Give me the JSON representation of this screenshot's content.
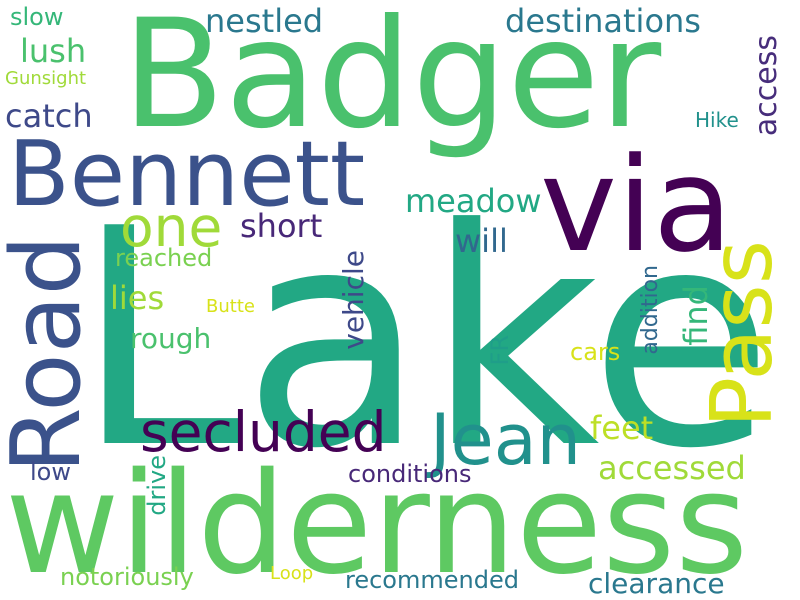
{
  "words": [
    {
      "text": "Lake",
      "color": "#22a884",
      "rotated": false
    },
    {
      "text": "Badger",
      "color": "#4ac16d",
      "rotated": false
    },
    {
      "text": "wilderness",
      "color": "#5ec962",
      "rotated": false
    },
    {
      "text": "via",
      "color": "#440154",
      "rotated": false
    },
    {
      "text": "Bennett",
      "color": "#3b528b",
      "rotated": false
    },
    {
      "text": "Road",
      "color": "#3b528b",
      "rotated": true
    },
    {
      "text": "Pass",
      "color": "#d8e219",
      "rotated": true
    },
    {
      "text": "Jean",
      "color": "#21918c",
      "rotated": false
    },
    {
      "text": "secluded",
      "color": "#440154",
      "rotated": false
    },
    {
      "text": "one",
      "color": "#a0da39",
      "rotated": false
    },
    {
      "text": "nestled",
      "color": "#2a788e",
      "rotated": false
    },
    {
      "text": "destinations",
      "color": "#2a788e",
      "rotated": false
    },
    {
      "text": "lush",
      "color": "#4ac16d",
      "rotated": false
    },
    {
      "text": "catch",
      "color": "#3e4989",
      "rotated": false
    },
    {
      "text": "short",
      "color": "#482878",
      "rotated": false
    },
    {
      "text": "meadow",
      "color": "#22a884",
      "rotated": false
    },
    {
      "text": "will",
      "color": "#31688e",
      "rotated": false
    },
    {
      "text": "reached",
      "color": "#7ad151",
      "rotated": false
    },
    {
      "text": "lies",
      "color": "#a0da39",
      "rotated": false
    },
    {
      "text": "Butte",
      "color": "#d8e219",
      "rotated": false
    },
    {
      "text": "rough",
      "color": "#4ac16d",
      "rotated": false
    },
    {
      "text": "vehicle",
      "color": "#3e4989",
      "rotated": true
    },
    {
      "text": "find",
      "color": "#35b779",
      "rotated": true
    },
    {
      "text": "addition",
      "color": "#31688e",
      "rotated": true
    },
    {
      "text": "FR",
      "color": "#1f9e89",
      "rotated": true
    },
    {
      "text": "cars",
      "color": "#d8e219",
      "rotated": false
    },
    {
      "text": "feet",
      "color": "#bddf26",
      "rotated": false
    },
    {
      "text": "accessed",
      "color": "#a0da39",
      "rotated": false
    },
    {
      "text": "access",
      "color": "#472d7b",
      "rotated": true
    },
    {
      "text": "Hike",
      "color": "#21918c",
      "rotated": false
    },
    {
      "text": "slow",
      "color": "#35b779",
      "rotated": false
    },
    {
      "text": "Gunsight",
      "color": "#a0da39",
      "rotated": false
    },
    {
      "text": "low",
      "color": "#3e4989",
      "rotated": false
    },
    {
      "text": "drive",
      "color": "#22a884",
      "rotated": true
    },
    {
      "text": "conditions",
      "color": "#482878",
      "rotated": false
    },
    {
      "text": "notoriously",
      "color": "#7ad151",
      "rotated": false
    },
    {
      "text": "Loop",
      "color": "#d8e219",
      "rotated": false
    },
    {
      "text": "recommended",
      "color": "#2a788e",
      "rotated": false
    },
    {
      "text": "clearance",
      "color": "#2a788e",
      "rotated": false
    }
  ]
}
